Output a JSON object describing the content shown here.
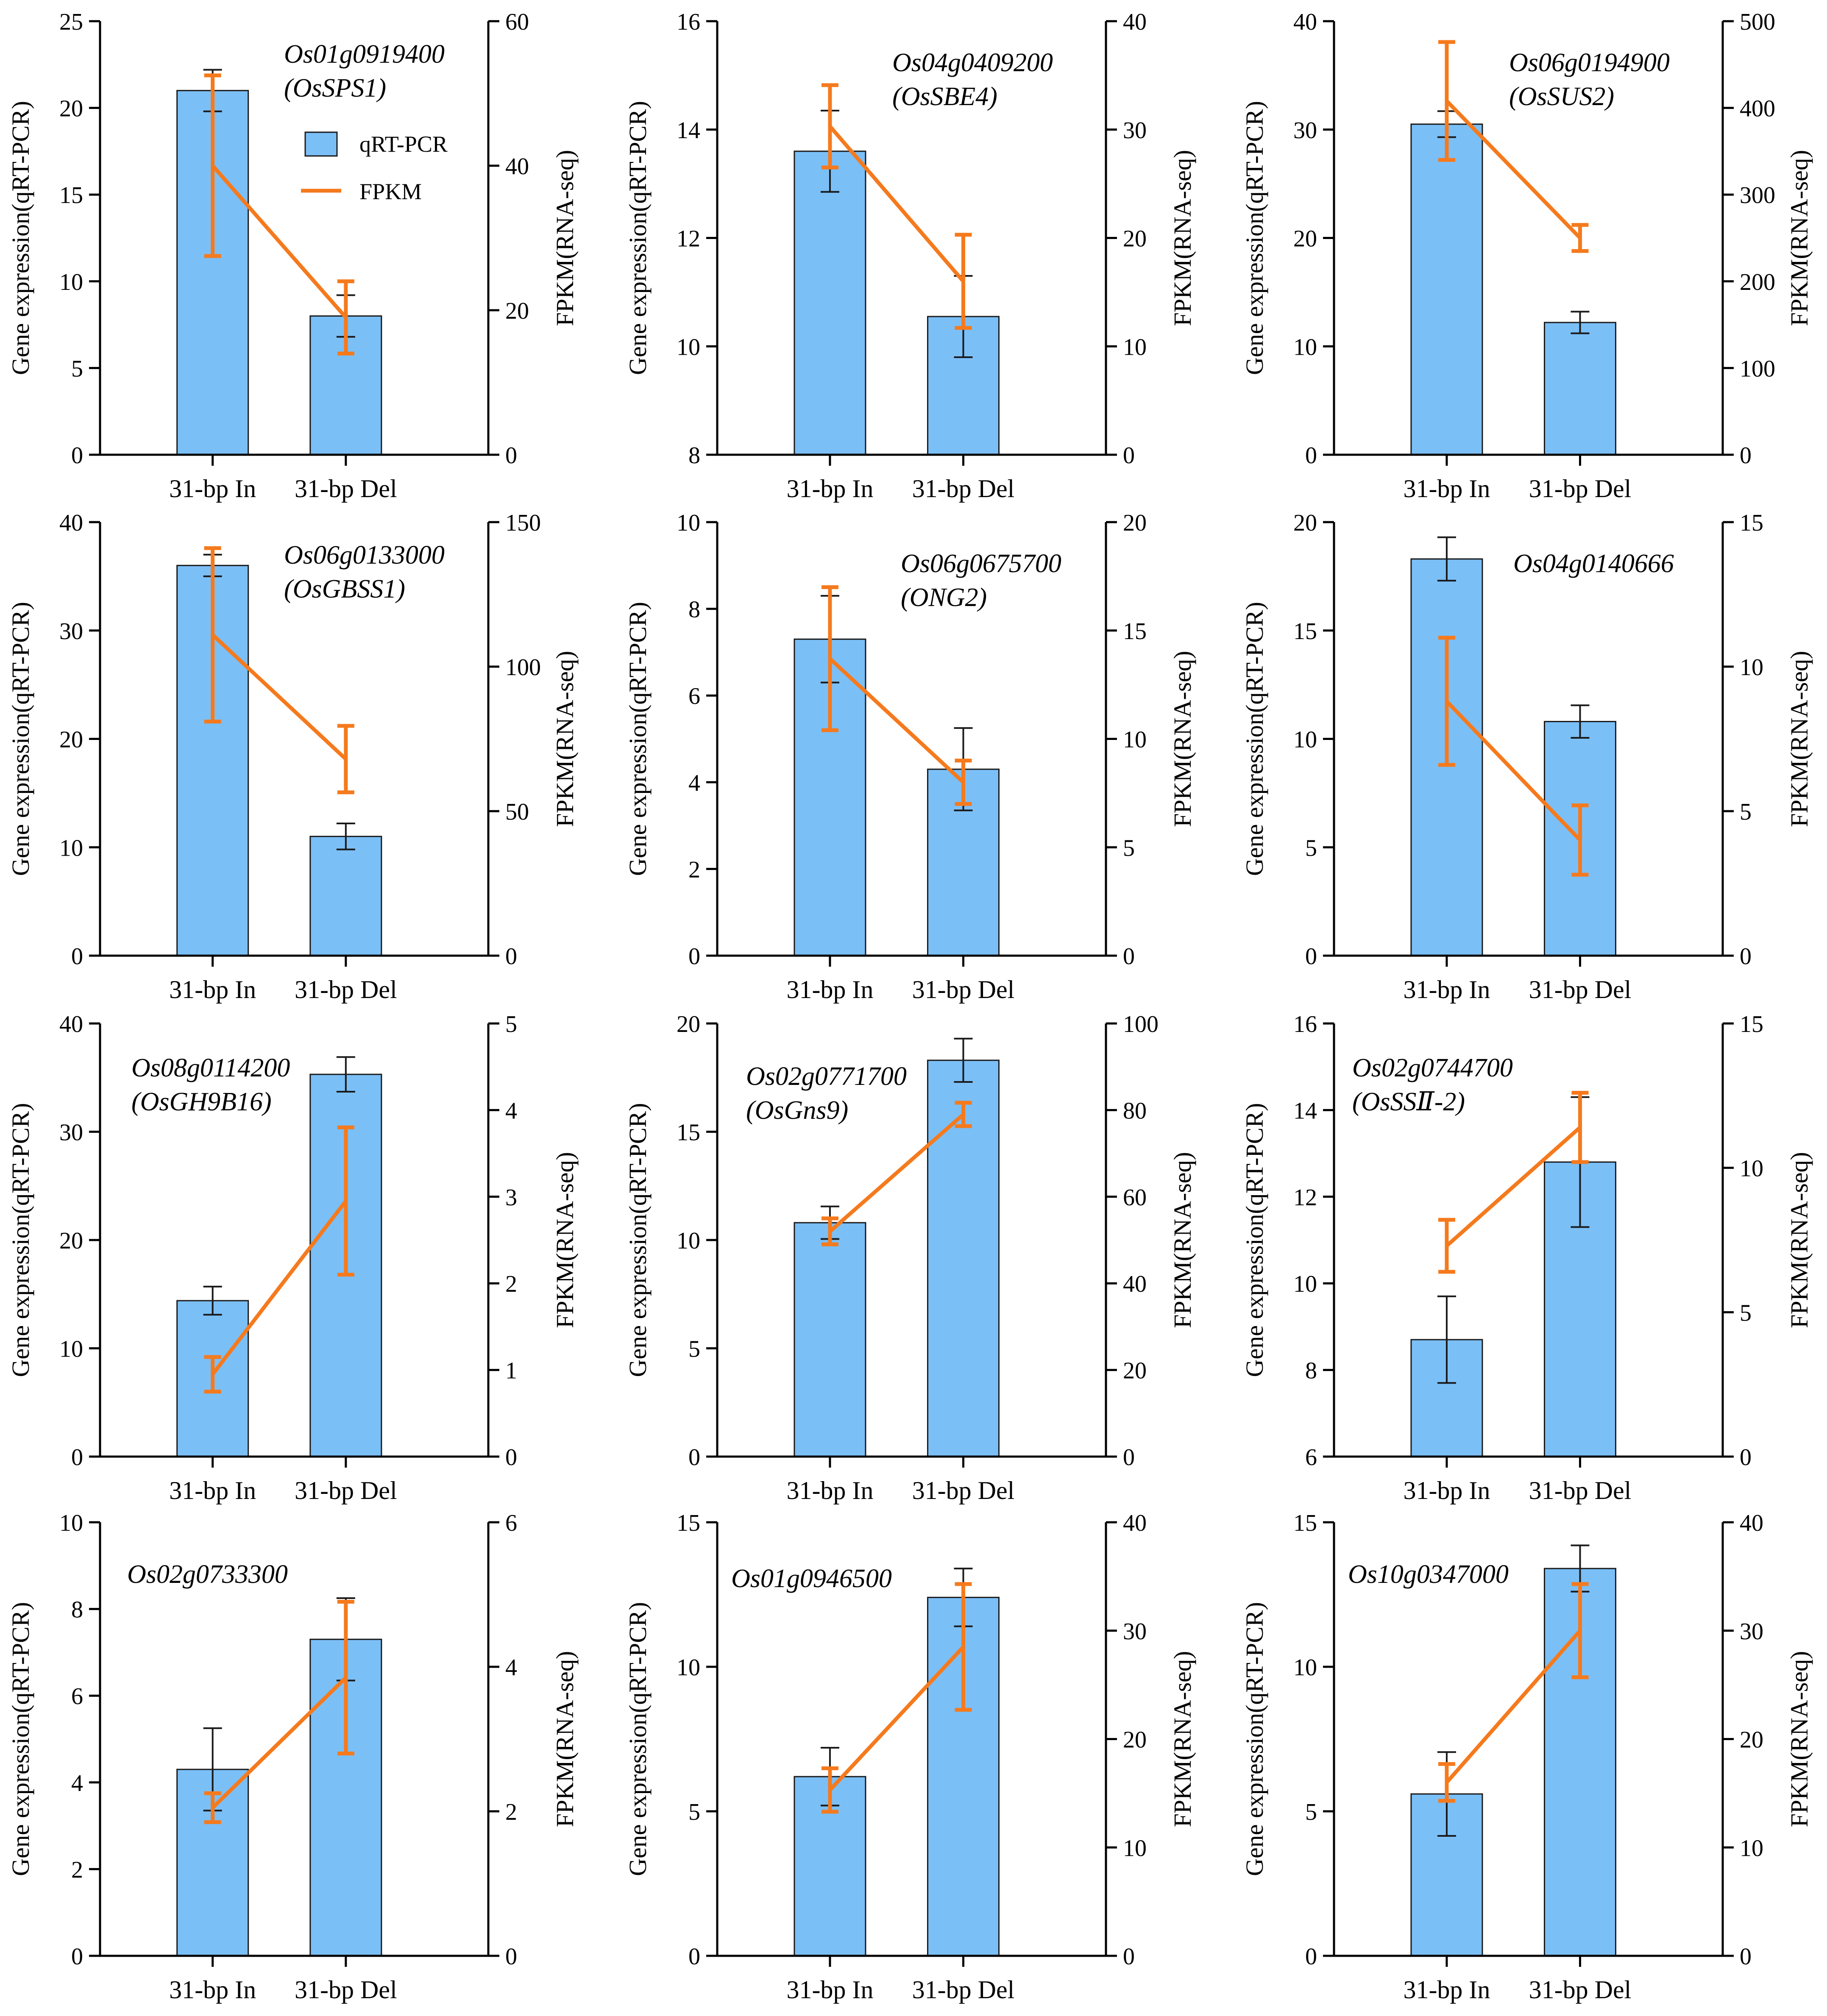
{
  "colors": {
    "bar": "#7bbff7",
    "fpkm": "#f57a1d",
    "axis": "#000000"
  },
  "legend": {
    "qrt_label": "qRT-PCR",
    "fpkm_label": "FPKM"
  },
  "chart_data": [
    {
      "type": "bar",
      "title": "Os01g0919400",
      "subtitle": "(OsSPS1)",
      "categories": [
        "31-bp In",
        "31-bp Del"
      ],
      "xlabel": "",
      "ylabel": "Gene expression(qRT-PCR)",
      "y2label": "FPKM(RNA-seq)",
      "ylim": [
        0,
        25
      ],
      "yticks": [
        0,
        5,
        10,
        15,
        20,
        25
      ],
      "y2lim": [
        0,
        60
      ],
      "y2ticks": [
        0,
        20,
        40,
        60
      ],
      "series": [
        {
          "name": "qRT-PCR",
          "axis": "left",
          "kind": "bar",
          "values": [
            21.0,
            8.0
          ],
          "errors": [
            1.2,
            1.2
          ]
        },
        {
          "name": "FPKM",
          "axis": "right",
          "kind": "line",
          "values": [
            40,
            19
          ],
          "errors": [
            12.5,
            5
          ]
        }
      ]
    },
    {
      "type": "bar",
      "title": "Os04g0409200",
      "subtitle": "(OsSBE4)",
      "categories": [
        "31-bp In",
        "31-bp Del"
      ],
      "xlabel": "",
      "ylabel": "Gene expression(qRT-PCR)",
      "y2label": "FPKM(RNA-seq)",
      "ylim": [
        8,
        16
      ],
      "yticks": [
        8,
        10,
        12,
        14,
        16
      ],
      "y2lim": [
        0,
        40
      ],
      "y2ticks": [
        0,
        10,
        20,
        30,
        40
      ],
      "series": [
        {
          "name": "qRT-PCR",
          "axis": "left",
          "kind": "bar",
          "values": [
            13.6,
            10.55
          ],
          "errors": [
            0.75,
            0.75
          ]
        },
        {
          "name": "FPKM",
          "axis": "right",
          "kind": "line",
          "values": [
            30.3,
            16
          ],
          "errors": [
            3.8,
            4.3
          ]
        }
      ]
    },
    {
      "type": "bar",
      "title": "Os06g0194900",
      "subtitle": "(OsSUS2)",
      "categories": [
        "31-bp In",
        "31-bp Del"
      ],
      "xlabel": "",
      "ylabel": "Gene expression(qRT-PCR)",
      "y2label": "FPKM(RNA-seq)",
      "ylim": [
        0,
        40
      ],
      "yticks": [
        0,
        10,
        20,
        30,
        40
      ],
      "y2lim": [
        0,
        500
      ],
      "y2ticks": [
        0,
        100,
        200,
        300,
        400,
        500
      ],
      "series": [
        {
          "name": "qRT-PCR",
          "axis": "left",
          "kind": "bar",
          "values": [
            30.5,
            12.2
          ],
          "errors": [
            1.2,
            1.0
          ]
        },
        {
          "name": "FPKM",
          "axis": "right",
          "kind": "line",
          "values": [
            408,
            250
          ],
          "errors": [
            68,
            15
          ]
        }
      ]
    },
    {
      "type": "bar",
      "title": "Os06g0133000",
      "subtitle": "(OsGBSS1)",
      "categories": [
        "31-bp In",
        "31-bp Del"
      ],
      "xlabel": "",
      "ylabel": "Gene expression(qRT-PCR)",
      "y2label": "FPKM(RNA-seq)",
      "ylim": [
        0,
        40
      ],
      "yticks": [
        0,
        10,
        20,
        30,
        40
      ],
      "y2lim": [
        0,
        150
      ],
      "y2ticks": [
        0,
        50,
        100,
        150
      ],
      "series": [
        {
          "name": "qRT-PCR",
          "axis": "left",
          "kind": "bar",
          "values": [
            36.0,
            11.0
          ],
          "errors": [
            1.0,
            1.2
          ]
        },
        {
          "name": "FPKM",
          "axis": "right",
          "kind": "line",
          "values": [
            111,
            68
          ],
          "errors": [
            30,
            11.5
          ]
        }
      ]
    },
    {
      "type": "bar",
      "title": "Os06g0675700",
      "subtitle": "(ONG2)",
      "categories": [
        "31-bp In",
        "31-bp Del"
      ],
      "xlabel": "",
      "ylabel": "Gene expression(qRT-PCR)",
      "y2label": "FPKM(RNA-seq)",
      "ylim": [
        0,
        10
      ],
      "yticks": [
        0,
        2,
        4,
        6,
        8,
        10
      ],
      "y2lim": [
        0,
        20
      ],
      "y2ticks": [
        0,
        5,
        10,
        15,
        20
      ],
      "series": [
        {
          "name": "qRT-PCR",
          "axis": "left",
          "kind": "bar",
          "values": [
            7.3,
            4.3
          ],
          "errors": [
            1.0,
            0.95
          ]
        },
        {
          "name": "FPKM",
          "axis": "right",
          "kind": "line",
          "values": [
            13.7,
            8.0
          ],
          "errors": [
            3.3,
            1.0
          ]
        }
      ]
    },
    {
      "type": "bar",
      "title": "Os04g0140666",
      "subtitle": "",
      "categories": [
        "31-bp In",
        "31-bp Del"
      ],
      "xlabel": "",
      "ylabel": "Gene expression(qRT-PCR)",
      "y2label": "FPKM(RNA-seq)",
      "ylim": [
        0,
        20
      ],
      "yticks": [
        0,
        5,
        10,
        15,
        20
      ],
      "y2lim": [
        0,
        15
      ],
      "y2ticks": [
        0,
        5,
        10,
        15
      ],
      "series": [
        {
          "name": "qRT-PCR",
          "axis": "left",
          "kind": "bar",
          "values": [
            18.3,
            10.8
          ],
          "errors": [
            1.0,
            0.75
          ]
        },
        {
          "name": "FPKM",
          "axis": "right",
          "kind": "line",
          "values": [
            8.8,
            4.0
          ],
          "errors": [
            2.2,
            1.2
          ]
        }
      ]
    },
    {
      "type": "bar",
      "title": "Os08g0114200",
      "subtitle": "(OsGH9B16)",
      "categories": [
        "31-bp In",
        "31-bp Del"
      ],
      "xlabel": "",
      "ylabel": "Gene expression(qRT-PCR)",
      "y2label": "FPKM(RNA-seq)",
      "ylim": [
        0,
        40
      ],
      "yticks": [
        0,
        10,
        20,
        30,
        40
      ],
      "y2lim": [
        0,
        5
      ],
      "y2ticks": [
        0,
        1,
        2,
        3,
        4,
        5
      ],
      "series": [
        {
          "name": "qRT-PCR",
          "axis": "left",
          "kind": "bar",
          "values": [
            14.4,
            35.3
          ],
          "errors": [
            1.3,
            1.6
          ]
        },
        {
          "name": "FPKM",
          "axis": "right",
          "kind": "line",
          "values": [
            0.95,
            2.95
          ],
          "errors": [
            0.2,
            0.85
          ]
        }
      ]
    },
    {
      "type": "bar",
      "title": "Os02g0771700",
      "subtitle": "(OsGns9)",
      "categories": [
        "31-bp In",
        "31-bp Del"
      ],
      "xlabel": "",
      "ylabel": "Gene expression(qRT-PCR)",
      "y2label": "FPKM(RNA-seq)",
      "ylim": [
        0,
        20
      ],
      "yticks": [
        0,
        5,
        10,
        15,
        20
      ],
      "y2lim": [
        0,
        100
      ],
      "y2ticks": [
        0,
        20,
        40,
        60,
        80,
        100
      ],
      "series": [
        {
          "name": "qRT-PCR",
          "axis": "left",
          "kind": "bar",
          "values": [
            10.8,
            18.3
          ],
          "errors": [
            0.75,
            1.0
          ]
        },
        {
          "name": "FPKM",
          "axis": "right",
          "kind": "line",
          "values": [
            52,
            79
          ],
          "errors": [
            3,
            2.7
          ]
        }
      ]
    },
    {
      "type": "bar",
      "title": "Os02g0744700",
      "subtitle": "(OsSSⅡ-2)",
      "categories": [
        "31-bp In",
        "31-bp Del"
      ],
      "xlabel": "",
      "ylabel": "Gene expression(qRT-PCR)",
      "y2label": "FPKM(RNA-seq)",
      "ylim": [
        6,
        16
      ],
      "yticks": [
        6,
        8,
        10,
        12,
        14,
        16
      ],
      "y2lim": [
        0,
        15
      ],
      "y2ticks": [
        0,
        5,
        10,
        15
      ],
      "series": [
        {
          "name": "qRT-PCR",
          "axis": "left",
          "kind": "bar",
          "values": [
            8.7,
            12.8
          ],
          "errors": [
            1.0,
            1.5
          ]
        },
        {
          "name": "FPKM",
          "axis": "right",
          "kind": "line",
          "values": [
            7.3,
            11.4
          ],
          "errors": [
            0.9,
            1.2
          ]
        }
      ]
    },
    {
      "type": "bar",
      "title": "Os02g0733300",
      "subtitle": "",
      "categories": [
        "31-bp In",
        "31-bp Del"
      ],
      "xlabel": "",
      "ylabel": "Gene expression(qRT-PCR)",
      "y2label": "FPKM(RNA-seq)",
      "ylim": [
        0,
        10
      ],
      "yticks": [
        0,
        2,
        4,
        6,
        8,
        10
      ],
      "y2lim": [
        0,
        6
      ],
      "y2ticks": [
        0,
        2,
        4,
        6
      ],
      "series": [
        {
          "name": "qRT-PCR",
          "axis": "left",
          "kind": "bar",
          "values": [
            4.3,
            7.3
          ],
          "errors": [
            0.95,
            0.95
          ]
        },
        {
          "name": "FPKM",
          "axis": "right",
          "kind": "line",
          "values": [
            2.05,
            3.85
          ],
          "errors": [
            0.2,
            1.05
          ]
        }
      ]
    },
    {
      "type": "bar",
      "title": "Os01g0946500",
      "subtitle": "",
      "categories": [
        "31-bp In",
        "31-bp Del"
      ],
      "xlabel": "",
      "ylabel": "Gene expression(qRT-PCR)",
      "y2label": "FPKM(RNA-seq)",
      "ylim": [
        0,
        15
      ],
      "yticks": [
        0,
        5,
        10,
        15
      ],
      "y2lim": [
        0,
        40
      ],
      "y2ticks": [
        0,
        10,
        20,
        30,
        40
      ],
      "series": [
        {
          "name": "qRT-PCR",
          "axis": "left",
          "kind": "bar",
          "values": [
            6.2,
            12.4
          ],
          "errors": [
            1.0,
            1.0
          ]
        },
        {
          "name": "FPKM",
          "axis": "right",
          "kind": "line",
          "values": [
            15.3,
            28.5
          ],
          "errors": [
            2,
            5.8
          ]
        }
      ]
    },
    {
      "type": "bar",
      "title": "Os10g0347000",
      "subtitle": "",
      "categories": [
        "31-bp In",
        "31-bp Del"
      ],
      "xlabel": "",
      "ylabel": "Gene expression(qRT-PCR)",
      "y2label": "FPKM(RNA-seq)",
      "ylim": [
        0,
        15
      ],
      "yticks": [
        0,
        5,
        10,
        15
      ],
      "y2lim": [
        0,
        40
      ],
      "y2ticks": [
        0,
        10,
        20,
        30,
        40
      ],
      "series": [
        {
          "name": "qRT-PCR",
          "axis": "left",
          "kind": "bar",
          "values": [
            5.6,
            13.4
          ],
          "errors": [
            1.45,
            0.8
          ]
        },
        {
          "name": "FPKM",
          "axis": "right",
          "kind": "line",
          "values": [
            16,
            30
          ],
          "errors": [
            1.7,
            4.3
          ]
        }
      ]
    }
  ]
}
